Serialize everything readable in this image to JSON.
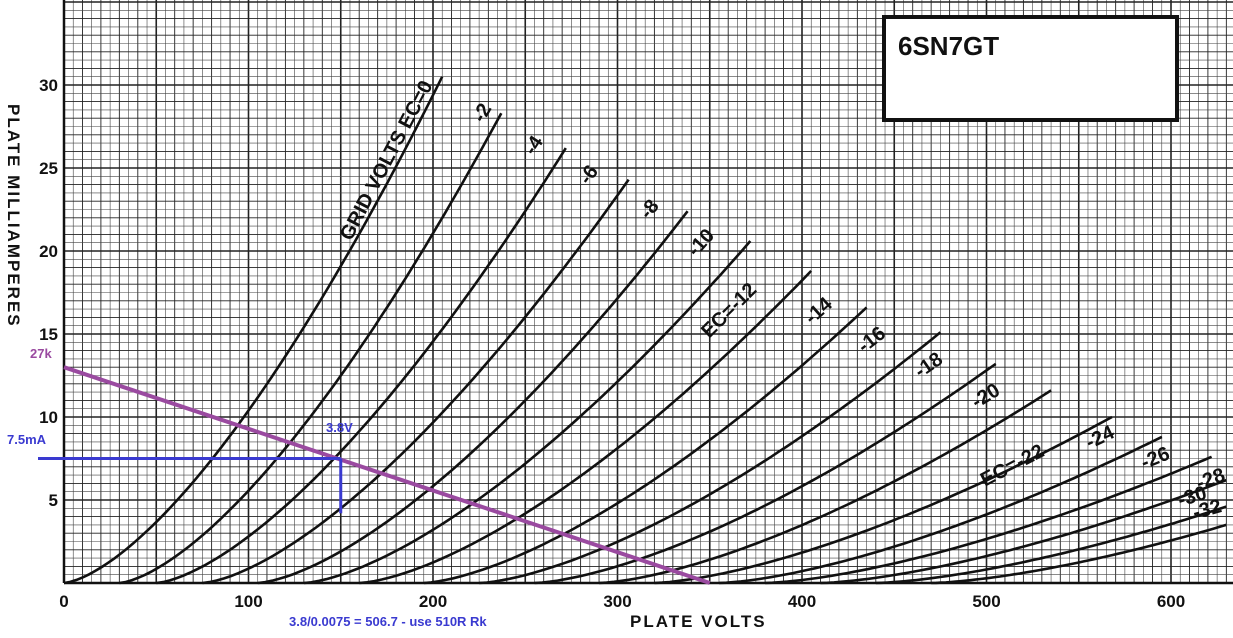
{
  "chart_data": {
    "type": "line",
    "title": "6SN7GT",
    "xlabel": "PLATE VOLTS",
    "ylabel": "PLATE MILLIAMPERES",
    "xlim": [
      0,
      630
    ],
    "ylim": [
      0,
      31
    ],
    "x_ticks": [
      0,
      100,
      200,
      300,
      400,
      500,
      600
    ],
    "y_ticks": [
      5,
      10,
      15,
      20,
      25,
      30
    ],
    "grid": true,
    "grid_label": "GRID VOLTS",
    "series": [
      {
        "label": "EC=0",
        "x0": 0,
        "x_end": 205,
        "y_end": 30.5,
        "label_x": 200,
        "label_y": 30.0
      },
      {
        "label": "-2",
        "x0": 30,
        "x_end": 237,
        "y_end": 28.3,
        "label_x": 232,
        "label_y": 28.6
      },
      {
        "label": "-4",
        "x0": 50,
        "x_end": 272,
        "y_end": 26.2,
        "label_x": 260,
        "label_y": 26.6
      },
      {
        "label": "-6",
        "x0": 75,
        "x_end": 306,
        "y_end": 24.3,
        "label_x": 290,
        "label_y": 24.8
      },
      {
        "label": "-8",
        "x0": 105,
        "x_end": 338,
        "y_end": 22.4,
        "label_x": 323,
        "label_y": 22.7
      },
      {
        "label": "-10",
        "x0": 130,
        "x_end": 372,
        "y_end": 20.6,
        "label_x": 353,
        "label_y": 20.9
      },
      {
        "label": "EC=-12",
        "x0": 160,
        "x_end": 405,
        "y_end": 18.8,
        "label_x": 376,
        "label_y": 17.6
      },
      {
        "label": "-14",
        "x0": 195,
        "x_end": 435,
        "y_end": 16.6,
        "label_x": 417,
        "label_y": 16.7
      },
      {
        "label": "-16",
        "x0": 225,
        "x_end": 475,
        "y_end": 15.1,
        "label_x": 446,
        "label_y": 14.9
      },
      {
        "label": "-18",
        "x0": 255,
        "x_end": 505,
        "y_end": 13.2,
        "label_x": 477,
        "label_y": 13.3
      },
      {
        "label": "-20",
        "x0": 290,
        "x_end": 535,
        "y_end": 11.6,
        "label_x": 508,
        "label_y": 11.4
      },
      {
        "label": "EC=-22",
        "x0": 320,
        "x_end": 568,
        "y_end": 10.0,
        "label_x": 532,
        "label_y": 7.7
      },
      {
        "label": "-24",
        "x0": 355,
        "x_end": 595,
        "y_end": 8.8,
        "label_x": 570,
        "label_y": 8.8
      },
      {
        "label": "-26",
        "x0": 380,
        "x_end": 622,
        "y_end": 7.6,
        "label_x": 600,
        "label_y": 7.5
      },
      {
        "label": "-28",
        "x0": 410,
        "x_end": 630,
        "y_end": 6.2,
        "label_x": 630,
        "label_y": 6.2
      },
      {
        "label": "-30",
        "x0": 440,
        "x_end": 630,
        "y_end": 4.6,
        "label_x": 620,
        "label_y": 5.1
      },
      {
        "label": "-32",
        "x0": 470,
        "x_end": 630,
        "y_end": 3.5,
        "label_x": 628,
        "label_y": 4.3
      }
    ],
    "load_line": {
      "label": "27k",
      "x": [
        0,
        350
      ],
      "y": [
        13.0,
        0
      ],
      "color": "#9a4aa0"
    },
    "operating_point": {
      "x": 150,
      "y": 7.5,
      "color": "#3a3ad0",
      "y_label": "7.5mA",
      "point_label": "3.8V",
      "drop_to_y": 4.2,
      "calc_note": "3.8/0.0075 = 506.7 - use 510R Rk"
    }
  }
}
